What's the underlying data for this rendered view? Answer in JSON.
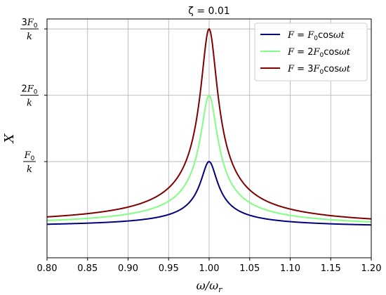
{
  "chart_data": {
    "type": "line",
    "title": "ζ = 0.01",
    "xlabel": {
      "main": "ω/ω",
      "sub": "r"
    },
    "ylabel": "X",
    "xlim": [
      0.8,
      1.2
    ],
    "ylim": [
      -0.45,
      3.15
    ],
    "grid": true,
    "legend_position": "top-right",
    "xticks": [
      0.8,
      0.85,
      0.9,
      0.95,
      1.0,
      1.05,
      1.1,
      1.15,
      1.2
    ],
    "xtick_labels": [
      "0.80",
      "0.85",
      "0.90",
      "0.95",
      "1.00",
      "1.05",
      "1.10",
      "1.15",
      "1.20"
    ],
    "yticks": [
      {
        "value": 1,
        "numerator": "F",
        "numerator_sub": "0",
        "coef": "",
        "denominator": "k"
      },
      {
        "value": 2,
        "numerator": "F",
        "numerator_sub": "0",
        "coef": "2",
        "denominator": "k"
      },
      {
        "value": 3,
        "numerator": "F",
        "numerator_sub": "0",
        "coef": "3",
        "denominator": "k"
      }
    ],
    "series": [
      {
        "name": "F = F₀cosωt",
        "legend": {
          "lhs": "F",
          "coef": "",
          "base": "F",
          "sub": "0",
          "fn": "cos",
          "var": "ωt"
        },
        "color": "#000080",
        "peak": 1
      },
      {
        "name": "F = 2F₀cosωt",
        "legend": {
          "lhs": "F",
          "coef": "2",
          "base": "F",
          "sub": "0",
          "fn": "cos",
          "var": "ωt"
        },
        "color": "#80ff80",
        "peak": 2
      },
      {
        "name": "F = 3F₀cosωt",
        "legend": {
          "lhs": "F",
          "coef": "3",
          "base": "F",
          "sub": "0",
          "fn": "cos",
          "var": "ωt"
        },
        "color": "#800000",
        "peak": 3
      }
    ],
    "model": {
      "zeta": 0.01,
      "x_start": 0.8,
      "x_end": 1.2,
      "samples": 400
    }
  }
}
